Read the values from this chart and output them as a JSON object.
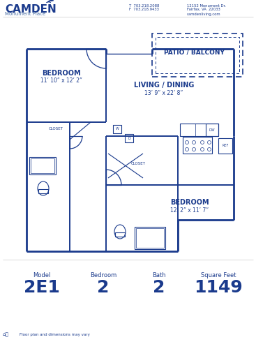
{
  "bg_color": "#ffffff",
  "blue": "#1a3a8c",
  "light_blue": "#4a6fa5",
  "model_label": "Model",
  "bedroom_label": "Bedroom",
  "bath_label": "Bath",
  "sqft_label": "Square Feet",
  "model_val": "2E1",
  "bedroom_val": "2",
  "bath_val": "2",
  "sqft_val": "1149",
  "disclaimer": "Floor plan and dimensions may vary",
  "phone1": "T  703.218.2088",
  "phone2": "F  703.218.9433",
  "address1": "12152 Monument Dr.",
  "address2": "Fairfax, VA  22033",
  "website": "camdenliving.com",
  "patio_label": "PATIO / BALCONY",
  "living_label": "LIVING / DINING",
  "living_dim": "13’ 9” x 22’ 8”",
  "bed1_label": "BEDROOM",
  "bed1_dim": "11’ 10” x 12’ 2”",
  "bed2_label": "BEDROOM",
  "bed2_dim": "12’ 2” x 11’ 7”",
  "closet_label": "CLOSET",
  "ref_label": "REF",
  "dw_label": "DW",
  "w_label": "W",
  "d_label": "D"
}
